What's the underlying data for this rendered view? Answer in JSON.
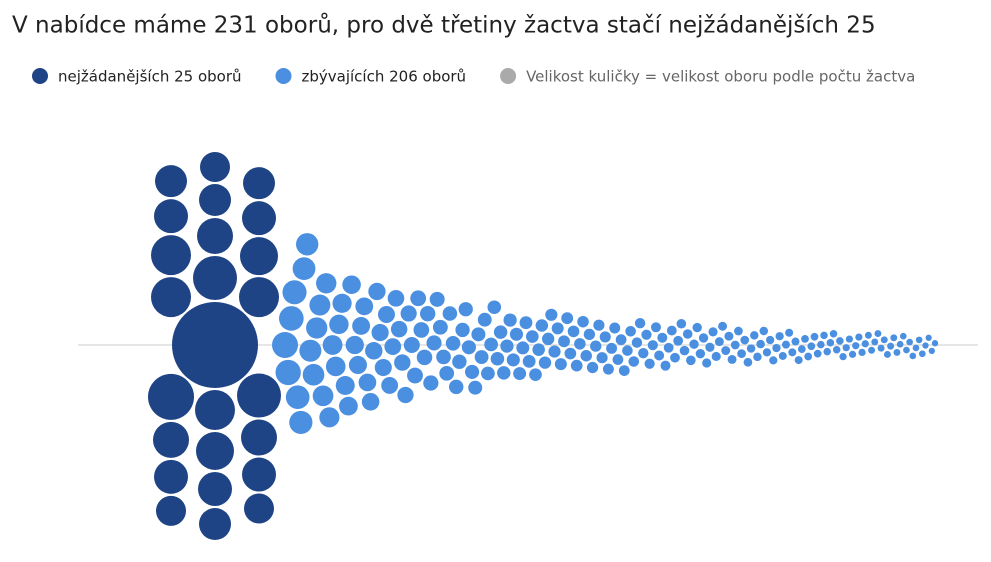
{
  "chart_data": {
    "type": "beeswarm",
    "title": "V nabídce máme 231 oborů, pro dvě třetiny žactva stačí nejžádanějších 25",
    "size_note": {
      "text": "Velikost kuličky = velikost oboru podle počtu žactva",
      "color": "#aaaaaa"
    },
    "series": [
      {
        "name": "nejžádanějších 25 oborů",
        "color": "#1f4485",
        "values": [
          1849,
          529,
          484,
          484,
          400,
          400,
          400,
          400,
          361,
          361,
          324,
          324,
          324,
          289,
          289,
          289,
          289,
          289,
          256,
          256,
          256,
          256,
          225,
          225,
          225
        ]
      },
      {
        "name": "zbývajících 206 oborů",
        "color": "#4a8fe0",
        "values": [
          169,
          160,
          152,
          145,
          140,
          135,
          130,
          125,
          121,
          117,
          113,
          110,
          107,
          104,
          101,
          98,
          96,
          94,
          92,
          90,
          88,
          86,
          84,
          82,
          80,
          79,
          78,
          77,
          76,
          75,
          74,
          73,
          72,
          71,
          70,
          69,
          68,
          67,
          66,
          65,
          64,
          63,
          62,
          61,
          60,
          59,
          58,
          57,
          56,
          55,
          54,
          54,
          53,
          53,
          52,
          52,
          51,
          51,
          50,
          50,
          49,
          49,
          48,
          48,
          47,
          47,
          46,
          46,
          45,
          45,
          44,
          44,
          43,
          43,
          42,
          42,
          41,
          41,
          40,
          40,
          39,
          39,
          38,
          38,
          37,
          37,
          36,
          36,
          35,
          35,
          34,
          34,
          34,
          33,
          33,
          33,
          32,
          32,
          32,
          31,
          31,
          31,
          30,
          30,
          30,
          29,
          29,
          29,
          28,
          28,
          28,
          27,
          27,
          27,
          26,
          26,
          26,
          25,
          25,
          25,
          25,
          24,
          24,
          24,
          24,
          23,
          23,
          23,
          23,
          22,
          22,
          22,
          22,
          21,
          21,
          21,
          21,
          20,
          20,
          20,
          20,
          20,
          19,
          19,
          19,
          19,
          19,
          18,
          18,
          18,
          18,
          18,
          17,
          17,
          17,
          17,
          17,
          16,
          16,
          16,
          16,
          16,
          16,
          15,
          15,
          15,
          15,
          15,
          15,
          14,
          14,
          14,
          14,
          14,
          14,
          14,
          13,
          13,
          13,
          13,
          13,
          13,
          13,
          13,
          12,
          12,
          12,
          12,
          12,
          12,
          12,
          12,
          12,
          12,
          11,
          11,
          11,
          11,
          11,
          11,
          11,
          11,
          10,
          10,
          10,
          10
        ]
      }
    ]
  }
}
